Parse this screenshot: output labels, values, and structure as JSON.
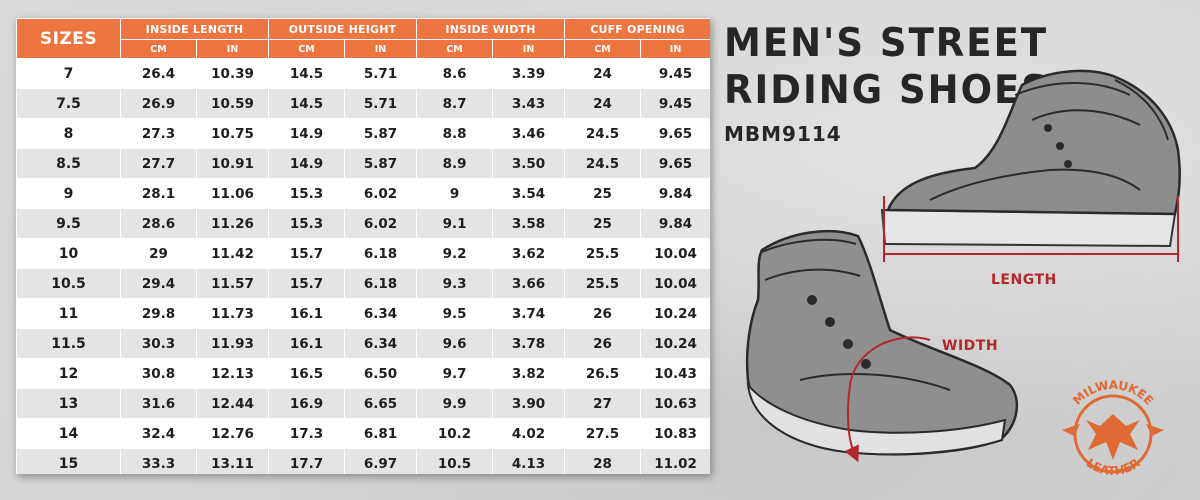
{
  "table": {
    "sizes_header": "SIZES",
    "groups": [
      "INSIDE LENGTH",
      "OUTSIDE HEIGHT",
      "INSIDE WIDTH",
      "CUFF OPENING"
    ],
    "units": [
      "CM",
      "IN",
      "CM",
      "IN",
      "CM",
      "IN",
      "CM",
      "IN"
    ],
    "rows": [
      [
        "7",
        "26.4",
        "10.39",
        "14.5",
        "5.71",
        "8.6",
        "3.39",
        "24",
        "9.45"
      ],
      [
        "7.5",
        "26.9",
        "10.59",
        "14.5",
        "5.71",
        "8.7",
        "3.43",
        "24",
        "9.45"
      ],
      [
        "8",
        "27.3",
        "10.75",
        "14.9",
        "5.87",
        "8.8",
        "3.46",
        "24.5",
        "9.65"
      ],
      [
        "8.5",
        "27.7",
        "10.91",
        "14.9",
        "5.87",
        "8.9",
        "3.50",
        "24.5",
        "9.65"
      ],
      [
        "9",
        "28.1",
        "11.06",
        "15.3",
        "6.02",
        "9",
        "3.54",
        "25",
        "9.84"
      ],
      [
        "9.5",
        "28.6",
        "11.26",
        "15.3",
        "6.02",
        "9.1",
        "3.58",
        "25",
        "9.84"
      ],
      [
        "10",
        "29",
        "11.42",
        "15.7",
        "6.18",
        "9.2",
        "3.62",
        "25.5",
        "10.04"
      ],
      [
        "10.5",
        "29.4",
        "11.57",
        "15.7",
        "6.18",
        "9.3",
        "3.66",
        "25.5",
        "10.04"
      ],
      [
        "11",
        "29.8",
        "11.73",
        "16.1",
        "6.34",
        "9.5",
        "3.74",
        "26",
        "10.24"
      ],
      [
        "11.5",
        "30.3",
        "11.93",
        "16.1",
        "6.34",
        "9.6",
        "3.78",
        "26",
        "10.24"
      ],
      [
        "12",
        "30.8",
        "12.13",
        "16.5",
        "6.50",
        "9.7",
        "3.82",
        "26.5",
        "10.43"
      ],
      [
        "13",
        "31.6",
        "12.44",
        "16.9",
        "6.65",
        "9.9",
        "3.90",
        "27",
        "10.63"
      ],
      [
        "14",
        "32.4",
        "12.76",
        "17.3",
        "6.81",
        "10.2",
        "4.02",
        "27.5",
        "10.83"
      ],
      [
        "15",
        "33.3",
        "13.11",
        "17.7",
        "6.97",
        "10.5",
        "4.13",
        "28",
        "11.02"
      ]
    ]
  },
  "title": {
    "line1": "MEN'S STREET",
    "line2": "RIDING SHOES",
    "model": "MBM9114"
  },
  "annotations": {
    "length_label": "LENGTH",
    "width_label": "WIDTH"
  },
  "brand": {
    "name_top": "MILWAUKEE",
    "name_bottom": "LEATHER"
  },
  "colors": {
    "header_orange": "#ee7540",
    "annotation_red": "#b3272a",
    "row_alt": "#e4e4e4",
    "logo_orange": "#e06a35"
  }
}
